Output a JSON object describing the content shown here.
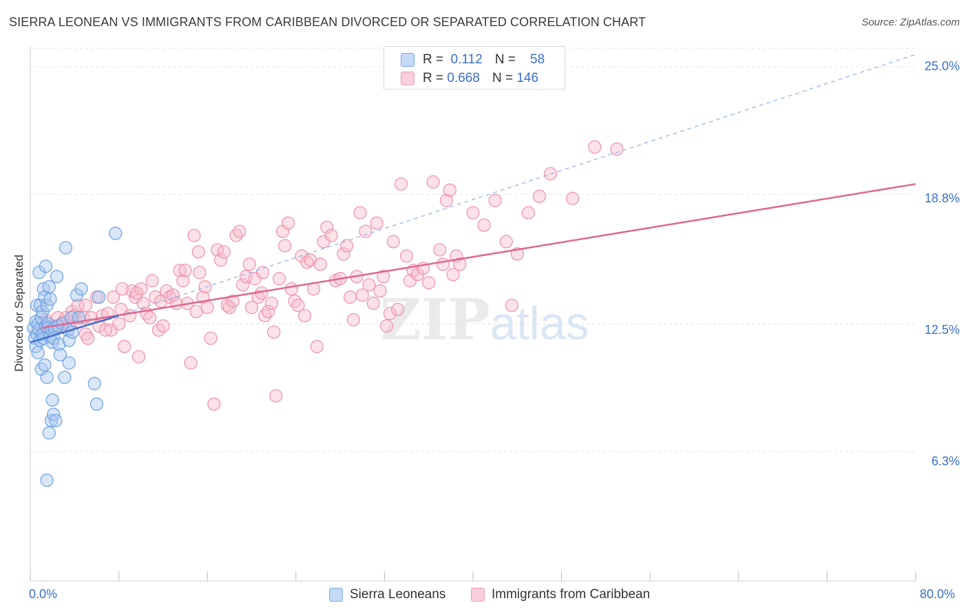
{
  "header": {
    "title": "SIERRA LEONEAN VS IMMIGRANTS FROM CARIBBEAN DIVORCED OR SEPARATED CORRELATION CHART",
    "source": "Source: ZipAtlas.com"
  },
  "watermark": {
    "zip": "ZIP",
    "atlas": "atlas"
  },
  "legend_top": {
    "rows": [
      {
        "r_label": "R =",
        "r_value": "0.112",
        "n_label": "N =",
        "n_value": "58"
      },
      {
        "r_label": "R =",
        "r_value": "0.668",
        "n_label": "N =",
        "n_value": "146"
      }
    ]
  },
  "legend_bottom": {
    "items": [
      {
        "label": "Sierra Leoneans"
      },
      {
        "label": "Immigrants from Caribbean"
      }
    ]
  },
  "axis_labels": {
    "x_min": "0.0%",
    "x_max": "80.0%",
    "y_ticks": [
      "25.0%",
      "18.8%",
      "12.5%",
      "6.3%"
    ]
  },
  "colors": {
    "blue_fill": "#a9c8f0",
    "blue_stroke": "#6b9fe0",
    "blue_line": "#3f6fd0",
    "pink_fill": "#f6bccd",
    "pink_stroke": "#ee8fab",
    "pink_line": "#e0668f",
    "grid": "#e2e2e2",
    "axis_text": "#3a6fc9"
  },
  "chart_data": {
    "type": "scatter",
    "title": "SIERRA LEONEAN VS IMMIGRANTS FROM CARIBBEAN DIVORCED OR SEPARATED CORRELATION CHART",
    "xlabel": "",
    "ylabel": "Divorced or Separated",
    "xlim": [
      0,
      80
    ],
    "ylim": [
      0,
      26
    ],
    "y_ticks": [
      6.3,
      12.5,
      18.8,
      25.0
    ],
    "grid": true,
    "legend_position": "bottom",
    "series": [
      {
        "name": "Sierra Leoneans",
        "R": 0.112,
        "N": 58,
        "trend": {
          "x": [
            0,
            8
          ],
          "y": [
            11.6,
            12.9
          ],
          "extended_to": [
            80,
            25.6
          ]
        },
        "points": [
          [
            0.3,
            12.3
          ],
          [
            0.4,
            11.8
          ],
          [
            0.5,
            12.6
          ],
          [
            0.5,
            11.4
          ],
          [
            0.6,
            12.0
          ],
          [
            0.6,
            13.4
          ],
          [
            0.7,
            12.5
          ],
          [
            0.7,
            11.1
          ],
          [
            0.8,
            12.2
          ],
          [
            0.8,
            15.0
          ],
          [
            0.9,
            13.4
          ],
          [
            0.9,
            11.7
          ],
          [
            1.0,
            12.8
          ],
          [
            1.0,
            10.3
          ],
          [
            1.1,
            13.1
          ],
          [
            1.1,
            12.0
          ],
          [
            1.2,
            14.2
          ],
          [
            1.2,
            11.8
          ],
          [
            1.3,
            13.8
          ],
          [
            1.3,
            10.5
          ],
          [
            1.4,
            15.3
          ],
          [
            1.4,
            12.4
          ],
          [
            1.5,
            13.4
          ],
          [
            1.5,
            9.9
          ],
          [
            1.6,
            12.5
          ],
          [
            1.6,
            12.3
          ],
          [
            1.7,
            14.3
          ],
          [
            1.7,
            7.2
          ],
          [
            1.8,
            13.7
          ],
          [
            1.8,
            11.9
          ],
          [
            1.9,
            12.2
          ],
          [
            1.9,
            7.8
          ],
          [
            2.0,
            8.8
          ],
          [
            2.0,
            11.6
          ],
          [
            2.1,
            8.1
          ],
          [
            2.1,
            11.8
          ],
          [
            2.2,
            12.3
          ],
          [
            2.3,
            7.8
          ],
          [
            2.4,
            14.8
          ],
          [
            2.5,
            12.4
          ],
          [
            2.6,
            11.5
          ],
          [
            2.7,
            11.0
          ],
          [
            2.9,
            12.5
          ],
          [
            3.1,
            9.9
          ],
          [
            3.2,
            16.2
          ],
          [
            3.4,
            12.2
          ],
          [
            3.5,
            11.7
          ],
          [
            3.5,
            10.6
          ],
          [
            3.7,
            12.8
          ],
          [
            3.8,
            12.1
          ],
          [
            4.2,
            13.9
          ],
          [
            4.4,
            12.8
          ],
          [
            4.6,
            14.2
          ],
          [
            5.8,
            9.6
          ],
          [
            6.0,
            8.6
          ],
          [
            6.2,
            13.8
          ],
          [
            7.7,
            16.9
          ],
          [
            1.5,
            4.9
          ]
        ]
      },
      {
        "name": "Immigrants from Caribbean",
        "R": 0.668,
        "N": 146,
        "trend": {
          "x": [
            1,
            80
          ],
          "y": [
            12.3,
            19.3
          ]
        },
        "points": [
          [
            1.0,
            12.4
          ],
          [
            1.2,
            12.1
          ],
          [
            1.4,
            12.7
          ],
          [
            1.6,
            12.3
          ],
          [
            2.0,
            12.4
          ],
          [
            2.5,
            12.8
          ],
          [
            2.8,
            12.4
          ],
          [
            3.0,
            12.6
          ],
          [
            3.2,
            12.8
          ],
          [
            3.5,
            12.4
          ],
          [
            3.8,
            13.1
          ],
          [
            4.0,
            12.9
          ],
          [
            4.3,
            13.4
          ],
          [
            4.5,
            12.6
          ],
          [
            4.8,
            12.8
          ],
          [
            5.0,
            12.0
          ],
          [
            5.2,
            11.8
          ],
          [
            5.5,
            12.8
          ],
          [
            6.0,
            13.8
          ],
          [
            6.2,
            12.4
          ],
          [
            6.5,
            12.9
          ],
          [
            7.0,
            13.0
          ],
          [
            7.3,
            12.2
          ],
          [
            7.5,
            13.8
          ],
          [
            8.0,
            12.5
          ],
          [
            8.2,
            13.2
          ],
          [
            8.5,
            11.4
          ],
          [
            9.0,
            12.9
          ],
          [
            9.2,
            14.1
          ],
          [
            9.5,
            13.8
          ],
          [
            9.8,
            10.9
          ],
          [
            10.0,
            14.2
          ],
          [
            10.2,
            13.5
          ],
          [
            10.5,
            13.0
          ],
          [
            10.8,
            12.8
          ],
          [
            11.0,
            14.6
          ],
          [
            11.3,
            13.8
          ],
          [
            11.6,
            12.2
          ],
          [
            11.8,
            13.6
          ],
          [
            12.0,
            12.4
          ],
          [
            12.3,
            14.1
          ],
          [
            12.6,
            13.8
          ],
          [
            12.9,
            13.9
          ],
          [
            13.2,
            13.5
          ],
          [
            13.5,
            15.1
          ],
          [
            13.8,
            14.6
          ],
          [
            14.0,
            15.1
          ],
          [
            14.2,
            13.5
          ],
          [
            14.5,
            10.6
          ],
          [
            14.8,
            16.8
          ],
          [
            15.0,
            13.1
          ],
          [
            15.3,
            15.0
          ],
          [
            15.6,
            13.8
          ],
          [
            15.8,
            14.3
          ],
          [
            16.0,
            13.3
          ],
          [
            16.3,
            11.8
          ],
          [
            16.6,
            8.6
          ],
          [
            16.9,
            16.1
          ],
          [
            17.2,
            15.6
          ],
          [
            17.5,
            16.0
          ],
          [
            17.8,
            13.4
          ],
          [
            18.0,
            13.3
          ],
          [
            18.3,
            13.6
          ],
          [
            18.6,
            16.8
          ],
          [
            18.9,
            17.0
          ],
          [
            19.2,
            14.4
          ],
          [
            19.5,
            14.8
          ],
          [
            19.8,
            15.4
          ],
          [
            20.0,
            13.3
          ],
          [
            20.3,
            14.7
          ],
          [
            20.6,
            13.8
          ],
          [
            20.9,
            14.0
          ],
          [
            21.2,
            12.9
          ],
          [
            21.5,
            13.1
          ],
          [
            21.8,
            13.5
          ],
          [
            22.0,
            12.1
          ],
          [
            22.2,
            9.0
          ],
          [
            22.5,
            14.7
          ],
          [
            22.8,
            17.0
          ],
          [
            23.0,
            16.3
          ],
          [
            23.3,
            17.4
          ],
          [
            23.6,
            14.2
          ],
          [
            23.9,
            13.6
          ],
          [
            24.2,
            13.4
          ],
          [
            24.5,
            15.8
          ],
          [
            24.8,
            12.9
          ],
          [
            25.0,
            15.5
          ],
          [
            25.3,
            15.6
          ],
          [
            25.6,
            14.2
          ],
          [
            25.9,
            11.4
          ],
          [
            26.2,
            15.4
          ],
          [
            26.5,
            16.5
          ],
          [
            26.8,
            17.2
          ],
          [
            27.2,
            16.8
          ],
          [
            27.6,
            14.6
          ],
          [
            28.0,
            14.7
          ],
          [
            28.3,
            15.9
          ],
          [
            28.6,
            16.3
          ],
          [
            28.9,
            13.8
          ],
          [
            29.2,
            12.7
          ],
          [
            29.5,
            14.8
          ],
          [
            29.8,
            17.9
          ],
          [
            30.0,
            13.9
          ],
          [
            30.3,
            17.0
          ],
          [
            30.6,
            14.4
          ],
          [
            31.0,
            13.5
          ],
          [
            31.3,
            17.4
          ],
          [
            31.6,
            14.1
          ],
          [
            31.9,
            14.8
          ],
          [
            32.2,
            12.4
          ],
          [
            32.5,
            13.0
          ],
          [
            32.8,
            16.5
          ],
          [
            33.2,
            13.2
          ],
          [
            33.5,
            19.3
          ],
          [
            34.0,
            15.8
          ],
          [
            34.3,
            14.6
          ],
          [
            34.6,
            15.1
          ],
          [
            35.0,
            14.9
          ],
          [
            35.5,
            15.2
          ],
          [
            36.0,
            14.5
          ],
          [
            36.4,
            19.4
          ],
          [
            37.0,
            16.1
          ],
          [
            37.3,
            15.4
          ],
          [
            37.6,
            18.5
          ],
          [
            37.9,
            19.0
          ],
          [
            38.2,
            14.9
          ],
          [
            38.5,
            15.8
          ],
          [
            38.8,
            15.4
          ],
          [
            40.0,
            17.9
          ],
          [
            41.0,
            17.3
          ],
          [
            42.0,
            18.5
          ],
          [
            43.0,
            16.5
          ],
          [
            43.5,
            13.4
          ],
          [
            44.0,
            15.9
          ],
          [
            45.0,
            17.9
          ],
          [
            46.0,
            18.7
          ],
          [
            47.0,
            19.8
          ],
          [
            49.0,
            18.6
          ],
          [
            51.0,
            21.1
          ],
          [
            53.0,
            21.0
          ],
          [
            8.3,
            14.2
          ],
          [
            9.6,
            14.0
          ],
          [
            5.0,
            13.4
          ],
          [
            6.8,
            12.2
          ],
          [
            15.2,
            16.0
          ],
          [
            21.0,
            15.0
          ]
        ]
      }
    ]
  }
}
